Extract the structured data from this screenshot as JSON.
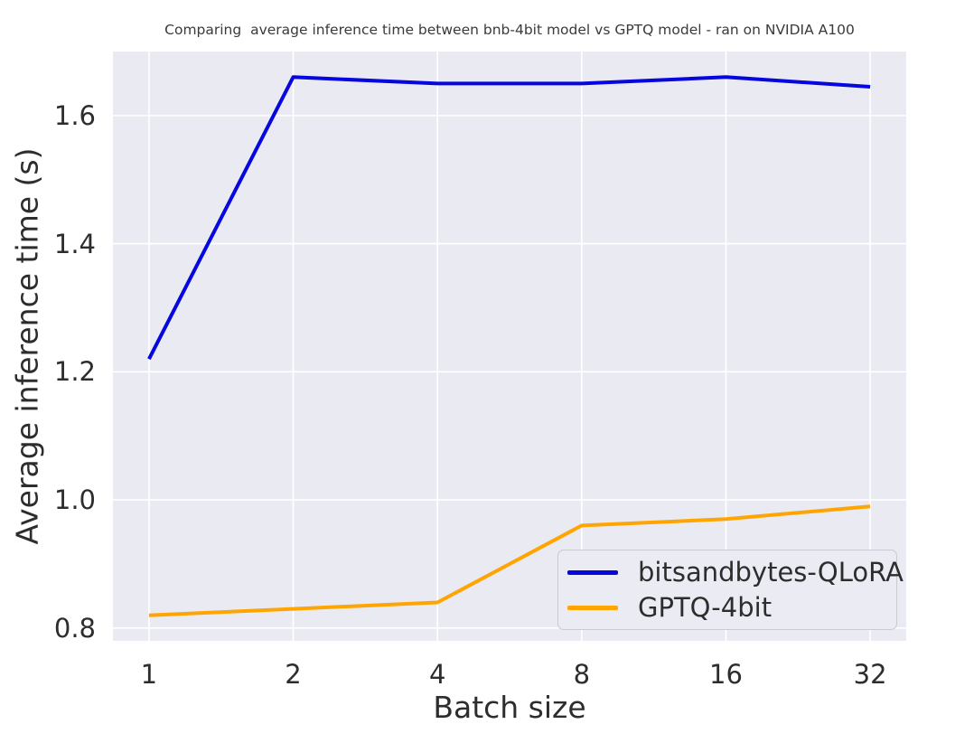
{
  "figure": {
    "background": "#ffffff",
    "plot_background": "#eaeaf2",
    "grid_color": "#ffffff",
    "text_color": "#2d2d2d"
  },
  "chart_data": {
    "type": "line",
    "title": "Comparing  average inference time between bnb-4bit model vs GPTQ model - ran on NVIDIA A100",
    "xlabel": "Batch size",
    "ylabel": "Average inference time (s)",
    "x": [
      1,
      2,
      4,
      8,
      16,
      32
    ],
    "xtick_labels": [
      "1",
      "2",
      "4",
      "8",
      "16",
      "32"
    ],
    "xscale": "log2",
    "series": [
      {
        "name": "bitsandbytes-QLoRA",
        "color": "#0606df",
        "values": [
          1.22,
          1.66,
          1.65,
          1.65,
          1.66,
          1.645
        ]
      },
      {
        "name": "GPTQ-4bit",
        "color": "#ffa502",
        "values": [
          0.82,
          0.83,
          0.84,
          0.96,
          0.97,
          0.99
        ]
      }
    ],
    "yticks": [
      0.8,
      1.0,
      1.2,
      1.4,
      1.6
    ],
    "ytick_labels": [
      "0.8",
      "1.0",
      "1.2",
      "1.4",
      "1.6"
    ],
    "ylim": [
      0.78,
      1.7
    ],
    "xlim_log2": [
      -0.25,
      5.25
    ],
    "grid": true,
    "legend_position": "lower right",
    "line_width": 4
  }
}
